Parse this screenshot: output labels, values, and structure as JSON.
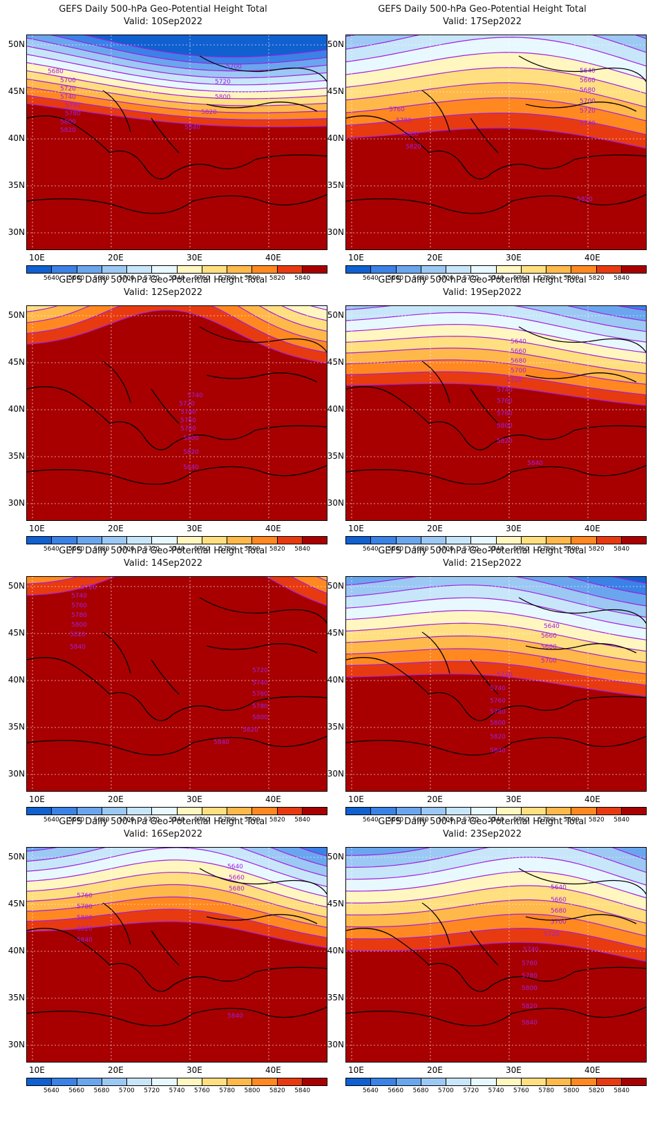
{
  "title_line1": "GEFS Daily 500-hPa Geo-Potential Height Total",
  "lat_labels": [
    "50N",
    "45N",
    "40N",
    "35N",
    "30N"
  ],
  "lon_labels": [
    "10E",
    "20E",
    "30E",
    "40E"
  ],
  "colorbar_labels": [
    "5640",
    "5660",
    "5680",
    "5700",
    "5720",
    "5740",
    "5760",
    "5780",
    "5800",
    "5820",
    "5840"
  ],
  "colors": [
    "#1060d0",
    "#3a82e6",
    "#6aa6ee",
    "#9cc8f4",
    "#c8e6fa",
    "#e8f8ff",
    "#fff6c0",
    "#ffdf80",
    "#ffb84a",
    "#ff8820",
    "#e83a10",
    "#a80000"
  ],
  "contour_color": "#a020e0",
  "panels": [
    {
      "valid": "Valid: 10Sep2022",
      "labels": [
        "5680",
        "5700",
        "5720",
        "5740",
        "5760",
        "5780",
        "5800",
        "5820",
        "5700",
        "5720",
        "5800",
        "5820",
        "5840"
      ]
    },
    {
      "valid": "Valid: 17Sep2022",
      "labels": [
        "5640",
        "5660",
        "5680",
        "5700",
        "5720",
        "5740",
        "5760",
        "5780",
        "5800",
        "5820",
        "5820"
      ]
    },
    {
      "valid": "Valid: 12Sep2022",
      "labels": [
        "5740",
        "5720",
        "5740",
        "5760",
        "5780",
        "5800",
        "5820",
        "5840"
      ]
    },
    {
      "valid": "Valid: 19Sep2022",
      "labels": [
        "5640",
        "5660",
        "5680",
        "5700",
        "5720",
        "5740",
        "5760",
        "5780",
        "5800",
        "5820",
        "5840"
      ]
    },
    {
      "valid": "Valid: 14Sep2022",
      "labels": [
        "5700",
        "5720",
        "5740",
        "5760",
        "5780",
        "5800",
        "5820",
        "5840",
        "5720",
        "5740",
        "5760",
        "5780",
        "5800",
        "5820",
        "5840"
      ]
    },
    {
      "valid": "Valid: 21Sep2022",
      "labels": [
        "5640",
        "5660",
        "5680",
        "5700",
        "5720",
        "5740",
        "5760",
        "5780",
        "5800",
        "5820",
        "5840"
      ]
    },
    {
      "valid": "Valid: 16Sep2022",
      "labels": [
        "5640",
        "5660",
        "5680",
        "5760",
        "5780",
        "5800",
        "5820",
        "5840",
        "5840"
      ]
    },
    {
      "valid": "Valid: 23Sep2022",
      "labels": [
        "5640",
        "5660",
        "5680",
        "5700",
        "5720",
        "5740",
        "5760",
        "5780",
        "5800",
        "5820",
        "5840"
      ]
    }
  ]
}
